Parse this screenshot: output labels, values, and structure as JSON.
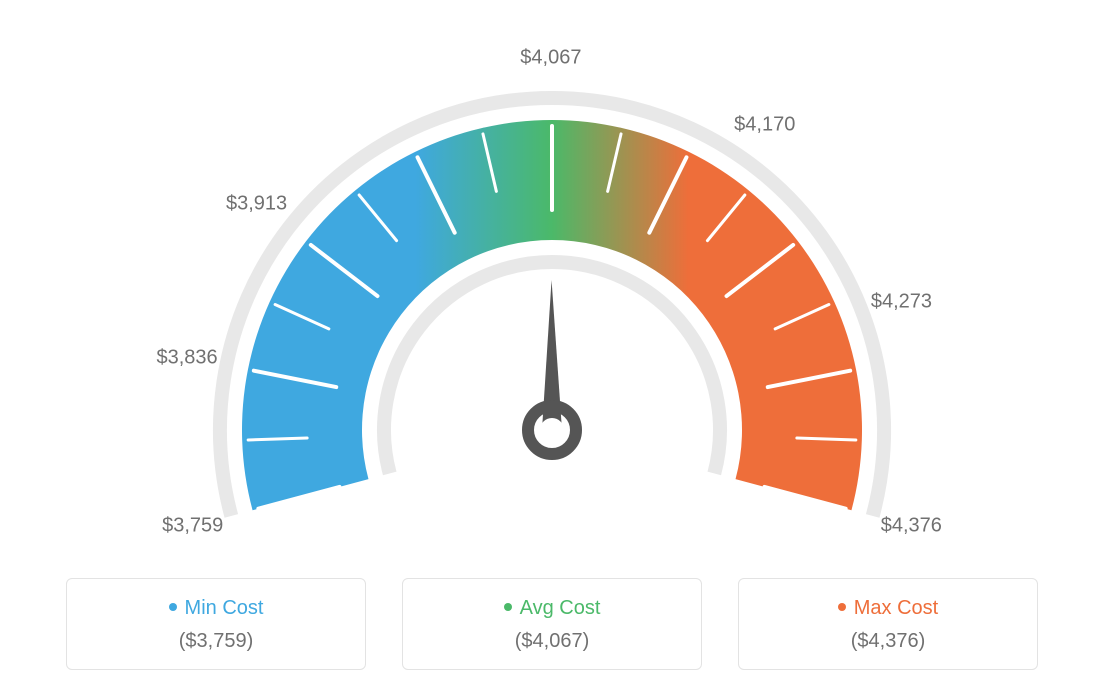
{
  "gauge": {
    "type": "gauge",
    "min": 3759,
    "max": 4376,
    "avg": 4067,
    "tick_values": [
      3759,
      3836,
      3913,
      4067,
      4170,
      4273,
      4376
    ],
    "tick_labels": [
      "$3,759",
      "$3,836",
      "$3,913",
      "$4,067",
      "$4,170",
      "$4,273",
      "$4,376"
    ],
    "needle_value": 4067,
    "colors": {
      "min": "#3fa8e0",
      "avg": "#4bb969",
      "max": "#ee6e3a",
      "track": "#e8e8e8",
      "tick": "#ffffff",
      "label": "#707070",
      "needle": "#555555",
      "background": "#ffffff"
    },
    "label_fontsize": 20,
    "arc_outer_radius": 310,
    "arc_inner_radius": 190,
    "track_width": 14,
    "start_angle_deg": 195,
    "end_angle_deg": -15
  },
  "legend": {
    "items": [
      {
        "title": "Min Cost",
        "value": "($3,759)",
        "color": "#3fa8e0"
      },
      {
        "title": "Avg Cost",
        "value": "($4,067)",
        "color": "#4bb969"
      },
      {
        "title": "Max Cost",
        "value": "($4,376)",
        "color": "#ee6e3a"
      }
    ]
  }
}
